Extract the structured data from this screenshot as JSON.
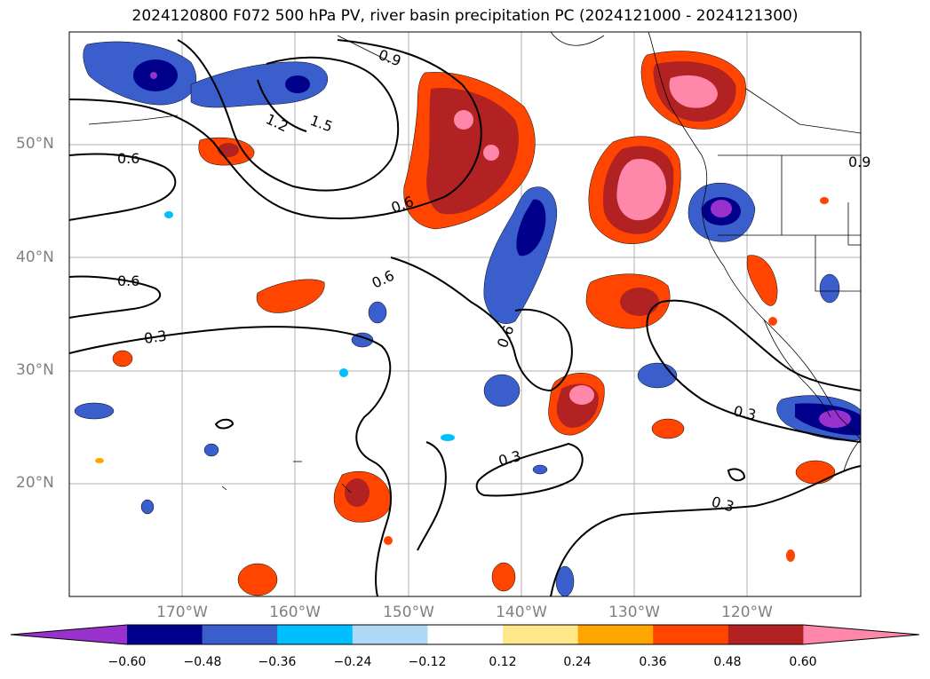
{
  "title": "2024120800 F072 500 hPa PV, river basin precipitation PC (2024121000 - 2024121300)",
  "lat_labels": [
    "50°N",
    "40°N",
    "30°N",
    "20°N"
  ],
  "lon_labels": [
    "170°W",
    "160°W",
    "150°W",
    "140°W",
    "130°W",
    "120°W"
  ],
  "contour_labels": [
    "0.9",
    "1.2",
    "1.5",
    "0.6",
    "0.6",
    "0.6",
    "0.6",
    "0.3",
    "0.6",
    "0.3",
    "0.3",
    "0.3",
    "0.9"
  ],
  "colorbar": {
    "ticks": [
      "−0.60",
      "−0.48",
      "−0.36",
      "−0.24",
      "−0.12",
      "0.12",
      "0.24",
      "0.36",
      "0.48",
      "0.60"
    ],
    "colors": [
      "#9932cc",
      "#00008b",
      "#3a5fcd",
      "#00bfff",
      "#add8f6",
      "#ffffff",
      "#ffe88a",
      "#ffa500",
      "#ff4500",
      "#b22222",
      "#ff88aa"
    ]
  }
}
